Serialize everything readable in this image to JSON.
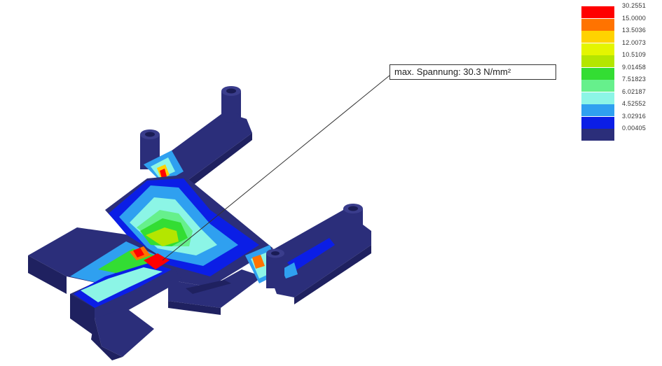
{
  "annotation": {
    "text": "max. Spannung: 30.3 N/mm²"
  },
  "legend": [
    {
      "label": "30.2551",
      "color": "#ff0000"
    },
    {
      "label": "15.0000",
      "color": "#ff7300"
    },
    {
      "label": "13.5036",
      "color": "#ffd200"
    },
    {
      "label": "12.0073",
      "color": "#e4f500"
    },
    {
      "label": "10.5109",
      "color": "#b4e600"
    },
    {
      "label": "9.01458",
      "color": "#33dd33"
    },
    {
      "label": "7.51823",
      "color": "#66f08c"
    },
    {
      "label": "6.02187",
      "color": "#8cf5e6"
    },
    {
      "label": "4.52552",
      "color": "#2fa0f0"
    },
    {
      "label": "3.02916",
      "color": "#0b1ee6"
    },
    {
      "label": "0.00405",
      "color": "#2b2e7a"
    }
  ],
  "colors": {
    "part_base": "#2b2e7a",
    "part_shade": "#1f2160",
    "part_dark": "#15174a",
    "background": "#ffffff"
  }
}
